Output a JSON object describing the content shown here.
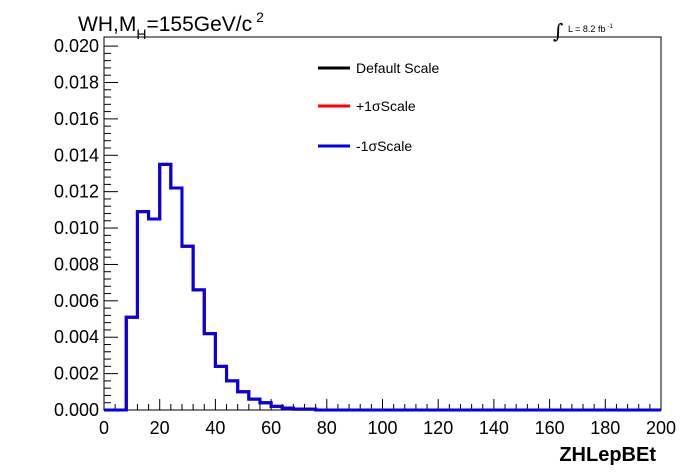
{
  "chart_data": {
    "type": "line",
    "title_parts": {
      "prefix": "WH,M",
      "subscript": "H",
      "middle": "=155GeV/c",
      "superscript": "2"
    },
    "luminosity": {
      "integral_symbol": "∫",
      "text": "L = 8.2 fb",
      "superscript": "-1"
    },
    "xlabel": "ZHLepBEt",
    "xlim": [
      0,
      200
    ],
    "ylim": [
      0,
      0.0205
    ],
    "x_ticks": [
      0,
      20,
      40,
      60,
      80,
      100,
      120,
      140,
      160,
      180,
      200
    ],
    "x_tick_labels": [
      "0",
      "20",
      "40",
      "60",
      "80",
      "100",
      "120",
      "140",
      "160",
      "180",
      "200"
    ],
    "y_ticks": [
      0,
      0.002,
      0.004,
      0.006,
      0.008,
      0.01,
      0.012,
      0.014,
      0.016,
      0.018,
      0.02
    ],
    "y_tick_labels": [
      "0.000",
      "0.002",
      "0.004",
      "0.006",
      "0.008",
      "0.010",
      "0.012",
      "0.014",
      "0.016",
      "0.018",
      "0.020"
    ],
    "bin_edges": [
      0,
      4,
      8,
      12,
      16,
      20,
      24,
      28,
      32,
      36,
      40,
      44,
      48,
      52,
      56,
      60,
      64,
      68,
      72,
      76,
      80,
      84,
      88,
      92,
      96,
      100,
      104,
      108,
      112,
      116,
      120,
      124,
      128,
      132,
      136,
      140,
      144,
      148,
      152,
      156,
      160,
      164,
      168,
      172,
      176,
      180,
      184,
      188,
      192,
      196,
      200
    ],
    "series": [
      {
        "name": "Default Scale",
        "color": "#000000",
        "values": [
          0,
          0,
          0.0051,
          0.0109,
          0.0105,
          0.0135,
          0.0122,
          0.009,
          0.0066,
          0.0042,
          0.0024,
          0.0016,
          0.001,
          0.0006,
          0.0004,
          0.0002,
          0.0001,
          5e-05,
          5e-05,
          0,
          0,
          0,
          0,
          0,
          0,
          0,
          0,
          0,
          0,
          0,
          0,
          0,
          0,
          0,
          0,
          0,
          0,
          0,
          0,
          0,
          0,
          0,
          0,
          0,
          0,
          0,
          0,
          0,
          0,
          0
        ]
      },
      {
        "name": "+1σScale",
        "color": "#ff0000",
        "values": [
          0,
          0,
          0.0051,
          0.0109,
          0.0105,
          0.0135,
          0.0122,
          0.009,
          0.0066,
          0.0042,
          0.0024,
          0.0016,
          0.001,
          0.0006,
          0.0004,
          0.0002,
          0.0001,
          5e-05,
          5e-05,
          0,
          0,
          0,
          0,
          0,
          0,
          0,
          0,
          0,
          0,
          0,
          0,
          0,
          0,
          0,
          0,
          0,
          0,
          0,
          0,
          0,
          0,
          0,
          0,
          0,
          0,
          0,
          0,
          0,
          0,
          0
        ]
      },
      {
        "name": "-1σScale",
        "color": "#0000ee",
        "values": [
          0,
          0,
          0.0051,
          0.0109,
          0.0105,
          0.0135,
          0.0122,
          0.009,
          0.0066,
          0.0042,
          0.0024,
          0.0016,
          0.001,
          0.0006,
          0.0004,
          0.0002,
          0.0001,
          5e-05,
          5e-05,
          0,
          0,
          0,
          0,
          0,
          0,
          0,
          0,
          0,
          0,
          0,
          0,
          0,
          0,
          0,
          0,
          0,
          0,
          0,
          0,
          0,
          0,
          0,
          0,
          0,
          0,
          0,
          0,
          0,
          0,
          0
        ]
      }
    ],
    "legend_position": "top-center",
    "grid": false
  }
}
